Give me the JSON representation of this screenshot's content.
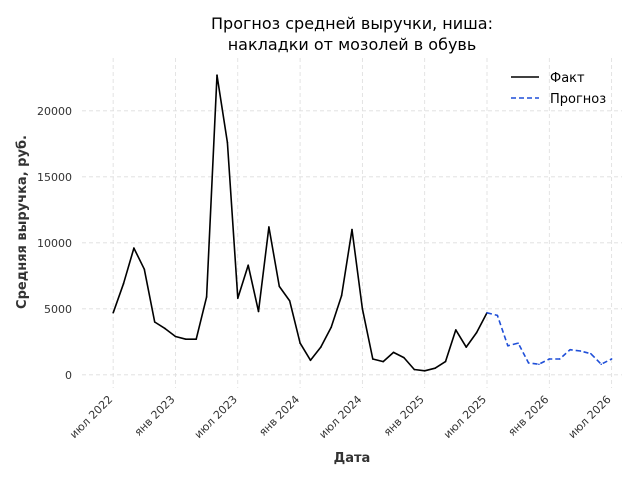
{
  "chart_data": {
    "type": "line",
    "title_line1": "Прогноз средней выручки, ниша:",
    "title_line2": "накладки от мозолей в обувь",
    "xlabel": "Дата",
    "ylabel": "Средняя выручка, руб.",
    "x_range": [
      "2022-04",
      "2026-08"
    ],
    "ylim": [
      -1000,
      24000
    ],
    "y_ticks": [
      0,
      5000,
      10000,
      15000,
      20000
    ],
    "x_ticks": [
      {
        "date": "2022-07",
        "label": "июл 2022"
      },
      {
        "date": "2023-01",
        "label": "янв 2023"
      },
      {
        "date": "2023-07",
        "label": "июл 2023"
      },
      {
        "date": "2024-01",
        "label": "янв 2024"
      },
      {
        "date": "2024-07",
        "label": "июл 2024"
      },
      {
        "date": "2025-01",
        "label": "янв 2025"
      },
      {
        "date": "2025-07",
        "label": "июл 2025"
      },
      {
        "date": "2026-01",
        "label": "янв 2026"
      },
      {
        "date": "2026-07",
        "label": "июл 2026"
      }
    ],
    "grid": true,
    "legend_position": "top-right",
    "series": [
      {
        "name": "Факт",
        "color": "#000000",
        "style": "solid",
        "points": [
          [
            "2022-07",
            4700
          ],
          [
            "2022-08",
            6900
          ],
          [
            "2022-09",
            9600
          ],
          [
            "2022-10",
            8000
          ],
          [
            "2022-11",
            4000
          ],
          [
            "2022-12",
            3500
          ],
          [
            "2023-01",
            2900
          ],
          [
            "2023-02",
            2700
          ],
          [
            "2023-03",
            2700
          ],
          [
            "2023-04",
            5900
          ],
          [
            "2023-05",
            22700
          ],
          [
            "2023-06",
            17600
          ],
          [
            "2023-07",
            5800
          ],
          [
            "2023-08",
            8300
          ],
          [
            "2023-09",
            4800
          ],
          [
            "2023-10",
            11200
          ],
          [
            "2023-11",
            6700
          ],
          [
            "2023-12",
            5600
          ],
          [
            "2024-01",
            2400
          ],
          [
            "2024-02",
            1100
          ],
          [
            "2024-03",
            2100
          ],
          [
            "2024-04",
            3600
          ],
          [
            "2024-05",
            6000
          ],
          [
            "2024-06",
            11000
          ],
          [
            "2024-07",
            5000
          ],
          [
            "2024-08",
            1200
          ],
          [
            "2024-09",
            1000
          ],
          [
            "2024-10",
            1700
          ],
          [
            "2024-11",
            1300
          ],
          [
            "2024-12",
            400
          ],
          [
            "2025-01",
            300
          ],
          [
            "2025-02",
            500
          ],
          [
            "2025-03",
            1000
          ],
          [
            "2025-04",
            3400
          ],
          [
            "2025-05",
            2100
          ],
          [
            "2025-06",
            3200
          ],
          [
            "2025-07",
            4700
          ]
        ]
      },
      {
        "name": "Прогноз",
        "color": "#1f4fd8",
        "style": "dashed",
        "points": [
          [
            "2025-07",
            4700
          ],
          [
            "2025-08",
            4500
          ],
          [
            "2025-09",
            2200
          ],
          [
            "2025-10",
            2400
          ],
          [
            "2025-11",
            900
          ],
          [
            "2025-12",
            800
          ],
          [
            "2026-01",
            1200
          ],
          [
            "2026-02",
            1200
          ],
          [
            "2026-03",
            1900
          ],
          [
            "2026-04",
            1800
          ],
          [
            "2026-05",
            1600
          ],
          [
            "2026-06",
            800
          ],
          [
            "2026-07",
            1200
          ]
        ]
      }
    ]
  }
}
